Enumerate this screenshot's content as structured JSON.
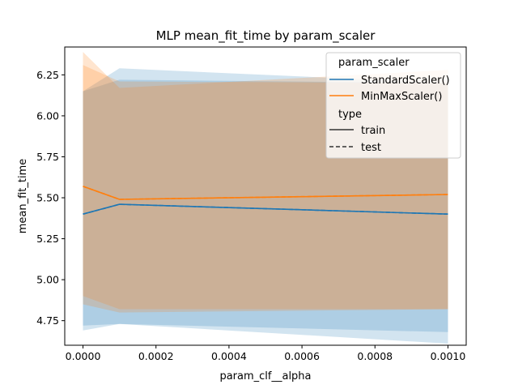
{
  "chart_data": {
    "type": "line",
    "title": "MLP mean_fit_time by param_scaler",
    "xlabel": "param_clf__alpha",
    "ylabel": "mean_fit_time",
    "xlim": [
      -5e-05,
      0.00105
    ],
    "ylim": [
      4.6,
      6.42
    ],
    "x_ticks": [
      0.0,
      0.0002,
      0.0004,
      0.0006,
      0.0008,
      0.001
    ],
    "x_tick_labels": [
      "0.0000",
      "0.0002",
      "0.0004",
      "0.0006",
      "0.0008",
      "0.0010"
    ],
    "y_ticks": [
      4.75,
      5.0,
      5.25,
      5.5,
      5.75,
      6.0,
      6.25
    ],
    "y_tick_labels": [
      "4.75",
      "5.00",
      "5.25",
      "5.50",
      "5.75",
      "6.00",
      "6.25"
    ],
    "grid": false,
    "legend_position": "top-right",
    "legend": {
      "hue_title": "param_scaler",
      "style_title": "type",
      "style_entries": [
        {
          "label": "train",
          "dash": "solid"
        },
        {
          "label": "test",
          "dash": "dashed"
        }
      ]
    },
    "x": [
      0.0,
      0.0001,
      0.001
    ],
    "series": [
      {
        "name": "StandardScaler()",
        "color": "#1f77b4",
        "type": "train",
        "values": [
          5.4,
          5.46,
          5.4
        ],
        "ci_low": [
          4.72,
          4.73,
          4.68
        ],
        "ci_high": [
          6.15,
          6.29,
          6.2
        ]
      },
      {
        "name": "StandardScaler()",
        "color": "#1f77b4",
        "type": "test",
        "values": [
          5.4,
          5.46,
          5.4
        ],
        "ci_low": [
          4.69,
          4.73,
          4.61
        ],
        "ci_high": [
          6.15,
          6.22,
          6.2
        ]
      },
      {
        "name": "MinMaxScaler()",
        "color": "#ff7f0e",
        "type": "train",
        "values": [
          5.57,
          5.49,
          5.52
        ],
        "ci_low": [
          4.9,
          4.82,
          4.82
        ],
        "ci_high": [
          6.31,
          6.21,
          6.2
        ]
      },
      {
        "name": "MinMaxScaler()",
        "color": "#ff7f0e",
        "type": "test",
        "values": [
          5.57,
          5.49,
          5.52
        ],
        "ci_low": [
          4.85,
          4.8,
          4.82
        ],
        "ci_high": [
          6.39,
          6.17,
          6.28
        ]
      }
    ]
  }
}
